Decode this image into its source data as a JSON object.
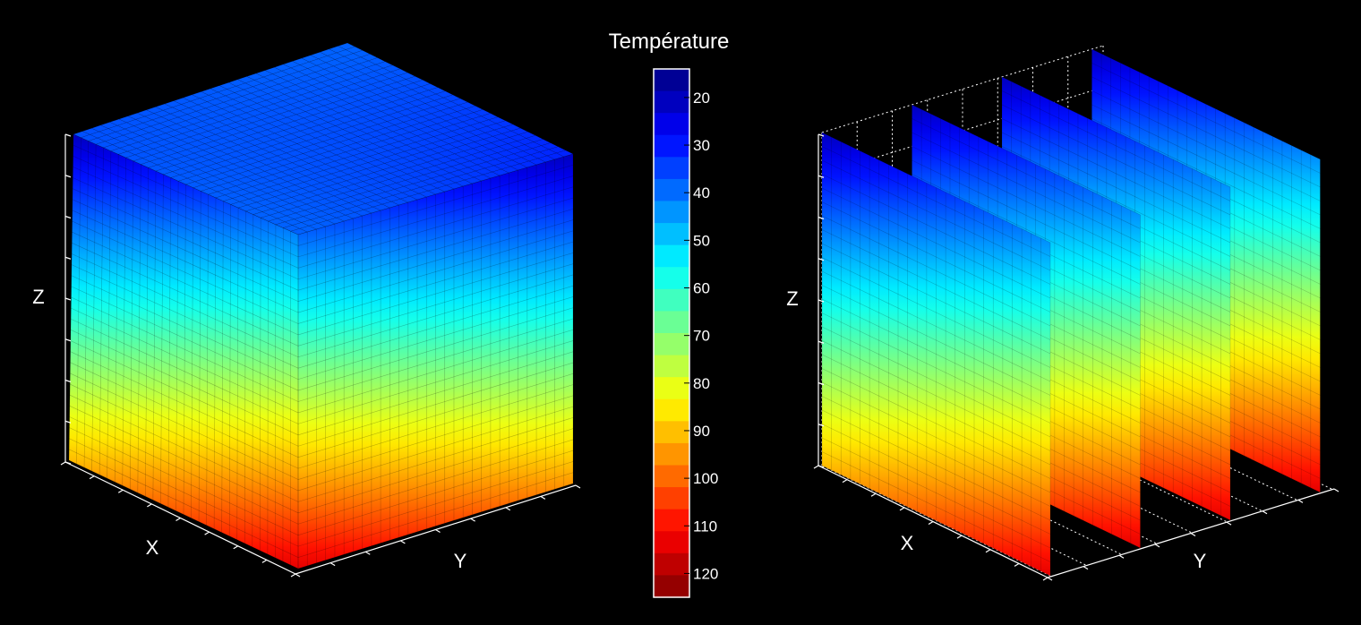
{
  "chart_data": {
    "type": "volumetric-3d",
    "colorbar": {
      "title": "Température",
      "range": [
        14,
        125
      ],
      "reversed": true,
      "ticks": [
        20,
        30,
        40,
        50,
        60,
        70,
        80,
        90,
        100,
        110,
        120
      ],
      "colormap": "jet",
      "levels": 24
    },
    "plots": [
      {
        "name": "cube",
        "xlabel": "X",
        "ylabel": "Y",
        "zlabel": "Z",
        "grid": false
      },
      {
        "name": "slices",
        "xlabel": "X",
        "ylabel": "Y",
        "zlabel": "Z",
        "grid": true,
        "slice_count": 4
      }
    ]
  },
  "colors": {
    "background": "#000000",
    "axes": "#ffffff",
    "mesh": "#000000"
  }
}
